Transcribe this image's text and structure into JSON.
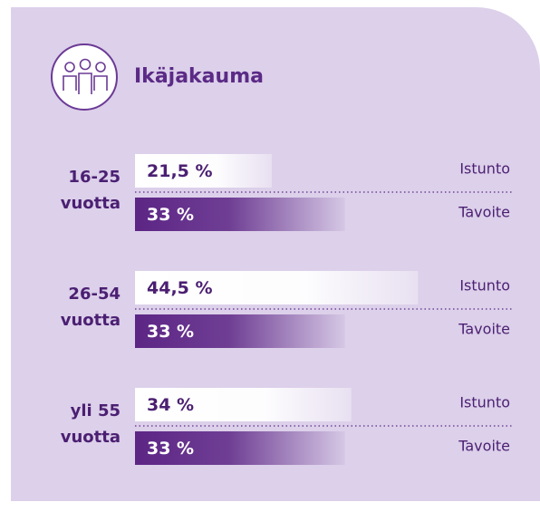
{
  "chart_data": {
    "type": "bar",
    "orientation": "horizontal",
    "title": "Ikäjakauma",
    "categories": [
      "16-25 vuotta",
      "26-54 vuotta",
      "yli 55 vuotta"
    ],
    "series": [
      {
        "name": "Istunto",
        "color": "#ffffff",
        "values": [
          21.5,
          44.5,
          34
        ],
        "value_labels": [
          "21,5 %",
          "44,5 %",
          "34 %"
        ]
      },
      {
        "name": "Tavoite",
        "color": "#5c2585",
        "values": [
          33,
          33,
          33
        ],
        "value_labels": [
          "33 %",
          "33 %",
          "33 %"
        ]
      }
    ]
  }
}
